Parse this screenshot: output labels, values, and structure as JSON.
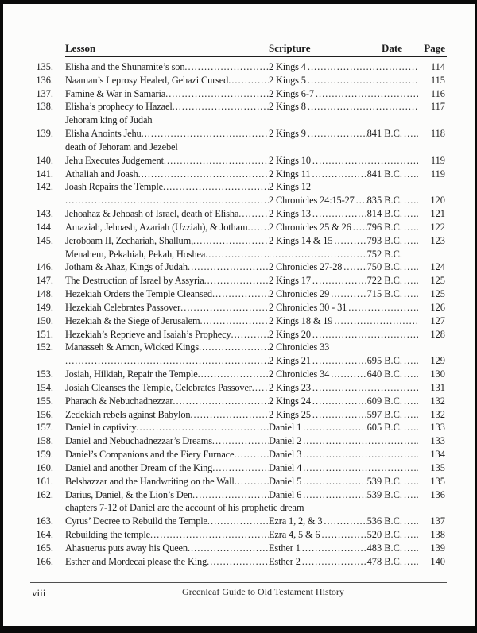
{
  "toc": {
    "headers": {
      "lesson": "Lesson",
      "scripture": "Scripture",
      "date": "Date",
      "page": "Page"
    },
    "entries": [
      {
        "num": "135.",
        "lines": [
          {
            "title": "Elisha and the Shunamite’s son",
            "scripture": "2 Kings 4",
            "date": "",
            "page": "114"
          }
        ]
      },
      {
        "num": "136.",
        "lines": [
          {
            "title": "Naaman’s Leprosy Healed, Gehazi Cursed",
            "scripture": "2 Kings 5",
            "date": "",
            "page": "115"
          }
        ]
      },
      {
        "num": "137.",
        "lines": [
          {
            "title": "Famine & War in Samaria",
            "scripture": "2 Kings 6-7",
            "date": "",
            "page": "116"
          }
        ]
      },
      {
        "num": "138.",
        "lines": [
          {
            "title": "Elisha’s prophecy to Hazael",
            "scripture": "2 Kings 8",
            "date": "",
            "page": "117"
          },
          {
            "title": "Jehoram king of Judah",
            "plain": true
          }
        ]
      },
      {
        "num": "139.",
        "lines": [
          {
            "title": "Elisha Anoints Jehu",
            "scripture": "2 Kings 9",
            "date": "841 B.C.",
            "page": "118"
          },
          {
            "title": "death of Jehoram and Jezebel",
            "plain": true
          }
        ]
      },
      {
        "num": "140.",
        "lines": [
          {
            "title": "Jehu Executes Judgement",
            "scripture": "2 Kings 10",
            "date": "",
            "page": "119"
          }
        ]
      },
      {
        "num": "141.",
        "lines": [
          {
            "title": "Athaliah and Joash",
            "scripture": "2 Kings 11",
            "date": "841 B.C.",
            "page": "119"
          }
        ]
      },
      {
        "num": "142.",
        "lines": [
          {
            "title": "Joash Repairs the Temple",
            "scripture": "2 Kings 12",
            "date": "",
            "page": ""
          },
          {
            "title": "",
            "scripture": "2 Chronicles 24:15-27",
            "date": "835 B.C.",
            "page": "120"
          }
        ]
      },
      {
        "num": "143.",
        "lines": [
          {
            "title": "Jehoahaz & Jehoash of Israel, death of Elisha",
            "scripture": "2 Kings 13",
            "date": "814 B.C.",
            "page": "121"
          }
        ]
      },
      {
        "num": "144.",
        "lines": [
          {
            "title": "Amaziah, Jehoash, Azariah (Uzziah), & Jotham",
            "scripture": "2 Chronicles 25 & 26",
            "date": "796 B.C.",
            "page": "122"
          }
        ]
      },
      {
        "num": "145.",
        "lines": [
          {
            "title": "Jeroboam II, Zechariah, Shallum,",
            "scripture": "2 Kings 14 & 15",
            "date": "793 B.C.",
            "page": "123"
          },
          {
            "title": "Menahem, Pekahiah, Pekah, Hoshea",
            "scripture": "",
            "date": "752 B.C.",
            "page": ""
          }
        ]
      },
      {
        "num": "146.",
        "lines": [
          {
            "title": "Jotham & Ahaz, Kings of Judah",
            "scripture": "2 Chronicles 27-28",
            "date": "750 B.C.",
            "page": "124"
          }
        ]
      },
      {
        "num": "147.",
        "lines": [
          {
            "title": "The Destruction of Israel by Assyria",
            "scripture": "2 Kings 17",
            "date": "722 B.C.",
            "page": "125"
          }
        ]
      },
      {
        "num": "148.",
        "lines": [
          {
            "title": "Hezekiah Orders the Temple Cleansed",
            "scripture": "2 Chronicles 29",
            "date": "715 B.C.",
            "page": "125"
          }
        ]
      },
      {
        "num": "149.",
        "lines": [
          {
            "title": "Hezekiah Celebrates Passover",
            "scripture": "2 Chronicles 30 - 31",
            "date": "",
            "page": "126"
          }
        ]
      },
      {
        "num": "150.",
        "lines": [
          {
            "title": "Hezekiah & the Siege of Jerusalem",
            "scripture": "2 Kings 18 & 19",
            "date": "",
            "page": "127"
          }
        ]
      },
      {
        "num": "151.",
        "lines": [
          {
            "title": "Hezekiah’s Reprieve and Isaiah’s Prophecy",
            "scripture": "2 Kings 20",
            "date": "",
            "page": "128"
          }
        ]
      },
      {
        "num": "152.",
        "lines": [
          {
            "title": "Manasseh & Amon, Wicked Kings",
            "scripture": "2 Chronicles 33",
            "date": "",
            "page": ""
          },
          {
            "title": "",
            "scripture": "2 Kings 21",
            "date": "695 B.C.",
            "page": "129"
          }
        ]
      },
      {
        "num": "153.",
        "lines": [
          {
            "title": "Josiah, Hilkiah, Repair the Temple",
            "scripture": "2 Chronicles 34",
            "date": "640 B.C.",
            "page": "130"
          }
        ]
      },
      {
        "num": "154.",
        "lines": [
          {
            "title": "Josiah Cleanses the Temple, Celebrates Passover",
            "scripture": "2 Kings 23",
            "date": "",
            "page": "131"
          }
        ]
      },
      {
        "num": "155.",
        "lines": [
          {
            "title": "Pharaoh & Nebuchadnezzar",
            "scripture": "2 Kings 24",
            "date": "609 B.C.",
            "page": "132"
          }
        ]
      },
      {
        "num": "156.",
        "lines": [
          {
            "title": "Zedekiah rebels against Babylon",
            "scripture": "2 Kings 25",
            "date": "597 B.C.",
            "page": "132"
          }
        ]
      },
      {
        "num": "157.",
        "lines": [
          {
            "title": "Daniel in captivity",
            "scripture": "Daniel 1",
            "date": "605 B.C.",
            "page": "133"
          }
        ]
      },
      {
        "num": "158.",
        "lines": [
          {
            "title": "Daniel and Nebuchadnezzar’s Dreams",
            "scripture": "Daniel 2",
            "date": "",
            "page": "133"
          }
        ]
      },
      {
        "num": "159.",
        "lines": [
          {
            "title": "Daniel’s Companions and the Fiery Furnace",
            "scripture": "Daniel 3",
            "date": "",
            "page": "134"
          }
        ]
      },
      {
        "num": "160.",
        "lines": [
          {
            "title": "Daniel and another Dream of the King",
            "scripture": "Daniel 4",
            "date": "",
            "page": "135"
          }
        ]
      },
      {
        "num": "161.",
        "lines": [
          {
            "title": "Belshazzar and the Handwriting on the Wall",
            "scripture": "Daniel 5",
            "date": "539 B.C.",
            "page": "135"
          }
        ]
      },
      {
        "num": "162.",
        "lines": [
          {
            "title": "Darius, Daniel, & the Lion’s Den",
            "scripture": "Daniel 6",
            "date": "539 B.C.",
            "page": "136"
          },
          {
            "title": "chapters 7-12 of Daniel are the account of his prophetic dream",
            "plain": true
          }
        ]
      },
      {
        "num": "163.",
        "lines": [
          {
            "title": "Cyrus’ Decree to Rebuild the Temple",
            "scripture": "Ezra 1, 2, & 3",
            "date": "536 B.C.",
            "page": "137"
          }
        ]
      },
      {
        "num": "164.",
        "lines": [
          {
            "title": "Rebuilding the temple",
            "scripture": "Ezra 4, 5 & 6",
            "date": "520 B.C.",
            "page": "138"
          }
        ]
      },
      {
        "num": "165.",
        "lines": [
          {
            "title": "Ahasuerus puts away his Queen",
            "scripture": "Esther 1",
            "date": "483 B.C.",
            "page": "139"
          }
        ]
      },
      {
        "num": "166.",
        "lines": [
          {
            "title": "Esther and Mordecai please the King",
            "scripture": "Esther 2",
            "date": "478 B.C.",
            "page": "140"
          }
        ]
      }
    ]
  },
  "footer": {
    "page_label": "viii",
    "book_title": "Greenleaf Guide to Old Testament History"
  }
}
